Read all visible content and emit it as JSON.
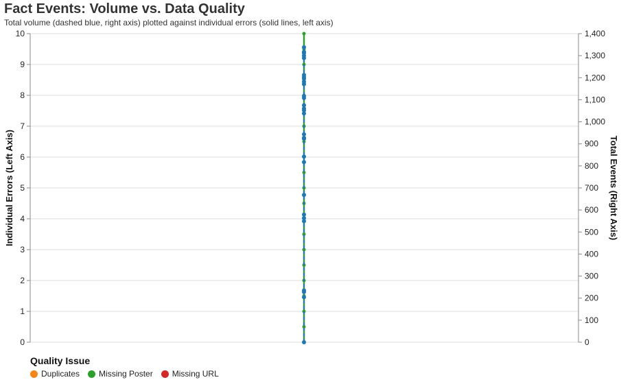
{
  "header": {
    "title": "Fact Events: Volume vs. Data Quality",
    "subtitle": "Total volume (dashed blue, right axis) plotted against individual errors (solid lines, left axis)"
  },
  "legend": {
    "title": "Quality Issue",
    "items": [
      {
        "label": "Duplicates",
        "color": "#f58518"
      },
      {
        "label": "Missing Poster",
        "color": "#2ca02c"
      },
      {
        "label": "Missing URL",
        "color": "#d62728"
      }
    ]
  },
  "chart_data": {
    "type": "line",
    "title": "Fact Events: Volume vs. Data Quality",
    "subtitle": "Total volume (dashed blue, right axis) plotted against individual errors (solid lines, left axis)",
    "y_left": {
      "label": "Individual Errors (Left Axis)",
      "range": [
        0,
        10
      ],
      "ticks": [
        "0",
        "1",
        "2",
        "3",
        "4",
        "5",
        "6",
        "7",
        "8",
        "9",
        "10"
      ]
    },
    "y_right": {
      "label": "Total Events (Right Axis)",
      "range": [
        0,
        1400
      ],
      "ticks": [
        "0",
        "100",
        "200",
        "300",
        "400",
        "500",
        "600",
        "700",
        "800",
        "900",
        "1,000",
        "1,100",
        "1,200",
        "1,300",
        "1,400"
      ]
    },
    "grid": true,
    "legend_position": "bottom-left",
    "series": [
      {
        "name": "Missing Poster",
        "axis": "left",
        "color": "#2ca02c",
        "values": [
          0,
          0.5,
          1,
          1.5,
          2,
          2.5,
          3,
          3.5,
          4,
          4.5,
          5,
          5.5,
          6,
          6.5,
          7,
          7.5,
          8,
          8.5,
          9,
          9.5,
          10
        ]
      },
      {
        "name": "Total Events",
        "axis": "right",
        "color": "#1f77b4",
        "values": [
          0,
          204,
          228,
          235,
          549,
          563,
          579,
          668,
          817,
          842,
          923,
          927,
          943,
          1038,
          1052,
          1060,
          1075,
          1108,
          1117,
          1171,
          1182,
          1196,
          1203,
          1212,
          1289,
          1300,
          1312,
          1317,
          1338
        ]
      }
    ]
  }
}
